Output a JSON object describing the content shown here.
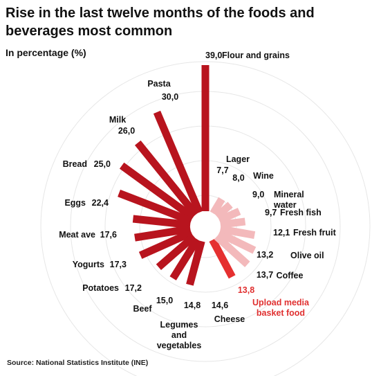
{
  "title": "Rise in the last twelve months of the foods and beverages most common",
  "unit_label": "In percentage (%)",
  "source": "Source: National Statistics Institute (INE)",
  "colors": {
    "dark_bar": "#b8141e",
    "light_bar": "#f3b9bb",
    "highlight_bar": "#e53030",
    "highlight_text": "#e03030",
    "grid": "#e6e6e6"
  },
  "chart_data": {
    "type": "radial-bar",
    "grid": true,
    "items": [
      {
        "name": "Flour and grains",
        "value": 39.0,
        "value_label": "39,0",
        "group": "dark"
      },
      {
        "name": "Pasta",
        "value": 30.0,
        "value_label": "30,0",
        "group": "dark"
      },
      {
        "name": "Milk",
        "value": 26.0,
        "value_label": "26,0",
        "group": "dark"
      },
      {
        "name": "Bread",
        "value": 25.0,
        "value_label": "25,0",
        "group": "dark"
      },
      {
        "name": "Eggs",
        "value": 22.4,
        "value_label": "22,4",
        "group": "dark"
      },
      {
        "name": "Meat ave",
        "value": 17.6,
        "value_label": "17,6",
        "group": "dark"
      },
      {
        "name": "Yogurts",
        "value": 17.3,
        "value_label": "17,3",
        "group": "dark"
      },
      {
        "name": "Potatoes",
        "value": 17.2,
        "value_label": "17,2",
        "group": "dark"
      },
      {
        "name": "Beef",
        "value": 15.0,
        "value_label": "15,0",
        "group": "dark"
      },
      {
        "name": "Legumes and vegetables",
        "value": 14.8,
        "value_label": "14,8",
        "group": "dark"
      },
      {
        "name": "Cheese",
        "value": 14.6,
        "value_label": "14,6",
        "group": "dark"
      },
      {
        "name": "Upload media basket food",
        "value": 13.8,
        "value_label": "13,8",
        "group": "highlight"
      },
      {
        "name": "Coffee",
        "value": 13.7,
        "value_label": "13,7",
        "group": "light"
      },
      {
        "name": "Olive oil",
        "value": 13.2,
        "value_label": "13,2",
        "group": "light"
      },
      {
        "name": "Fresh fruit",
        "value": 12.1,
        "value_label": "12,1",
        "group": "light"
      },
      {
        "name": "Fresh fish",
        "value": 9.7,
        "value_label": "9,7",
        "group": "light"
      },
      {
        "name": "Mineral water",
        "value": 9.0,
        "value_label": "9,0",
        "group": "light"
      },
      {
        "name": "Wine",
        "value": 8.0,
        "value_label": "8,0",
        "group": "light"
      },
      {
        "name": "Lager",
        "value": 7.7,
        "value_label": "7,7",
        "group": "light"
      }
    ]
  }
}
